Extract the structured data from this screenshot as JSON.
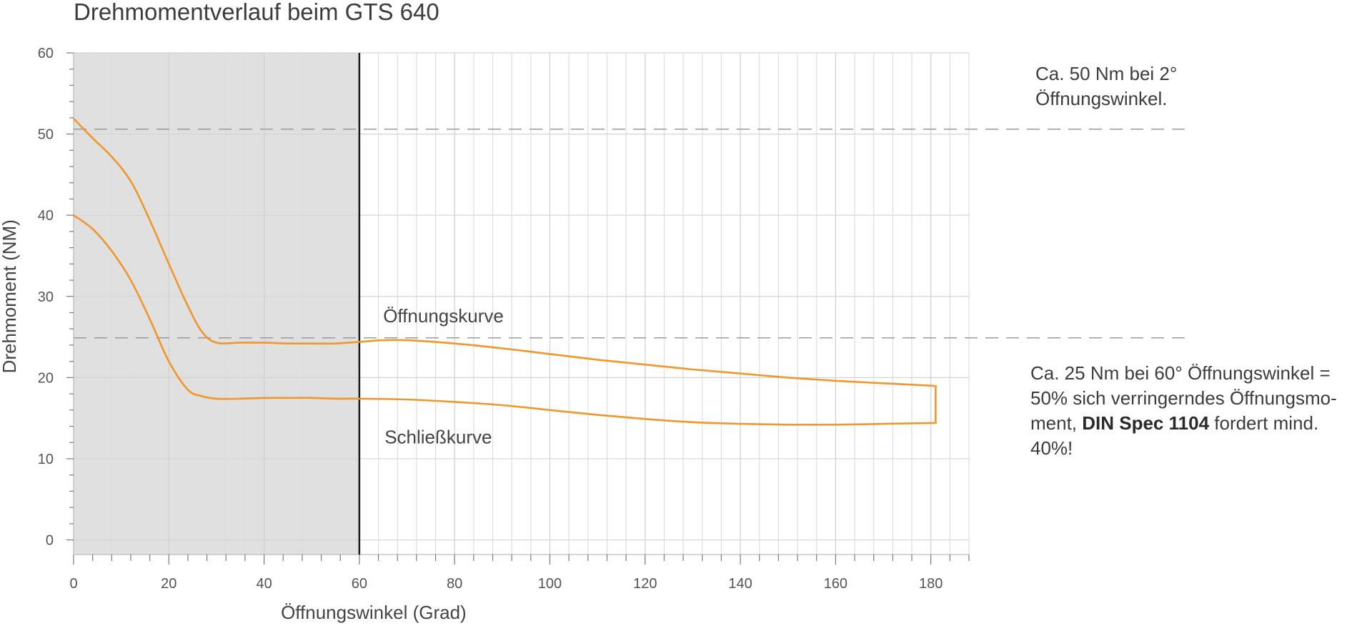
{
  "chart_data": {
    "type": "line",
    "title": "Drehmomentverlauf beim GTS 640",
    "xlabel": "Öffnungswinkel (Grad)",
    "ylabel": "Drehmoment (NM)",
    "xlim": [
      0,
      188
    ],
    "ylim": [
      -1.8,
      60
    ],
    "x_ticks": [
      0,
      20,
      40,
      60,
      80,
      100,
      120,
      140,
      160,
      180
    ],
    "y_ticks": [
      0,
      10,
      20,
      30,
      40,
      50,
      60
    ],
    "x_minor_step": 4,
    "y_minor_step": 2,
    "grid": true,
    "shaded_region": {
      "x_from": 0,
      "x_to": 60,
      "color": "#e0e0e0"
    },
    "reference_lines": [
      {
        "axis": "x",
        "value": 60,
        "style": "solid",
        "color": "#1a1a1a"
      },
      {
        "axis": "y",
        "value": 50.6,
        "style": "dashed",
        "color": "#9a9a9a"
      },
      {
        "axis": "y",
        "value": 24.9,
        "style": "dashed",
        "color": "#9a9a9a"
      }
    ],
    "series": [
      {
        "name": "Öffnungskurve",
        "color": "#f0962b",
        "x": [
          0,
          4,
          8,
          12,
          16,
          20,
          24,
          27,
          30,
          35,
          40,
          45,
          50,
          55,
          60,
          65,
          70,
          80,
          90,
          100,
          110,
          120,
          130,
          140,
          150,
          160,
          170,
          180,
          181
        ],
        "y": [
          51.9,
          49.5,
          47.2,
          44.2,
          39.4,
          34.0,
          28.8,
          25.6,
          24.3,
          24.3,
          24.3,
          24.2,
          24.2,
          24.2,
          24.4,
          24.6,
          24.6,
          24.2,
          23.6,
          22.9,
          22.2,
          21.6,
          21.0,
          20.5,
          20.0,
          19.6,
          19.3,
          19.0,
          18.9
        ]
      },
      {
        "name": "Schließkurve",
        "color": "#f0962b",
        "x": [
          0,
          4,
          8,
          12,
          16,
          20,
          24,
          27,
          30,
          35,
          40,
          45,
          50,
          55,
          60,
          70,
          80,
          90,
          100,
          110,
          120,
          130,
          140,
          150,
          160,
          170,
          180,
          181
        ],
        "y": [
          40.0,
          38.3,
          35.6,
          32.0,
          27.2,
          22.0,
          18.5,
          17.7,
          17.4,
          17.4,
          17.5,
          17.5,
          17.5,
          17.4,
          17.4,
          17.3,
          17.0,
          16.6,
          16.0,
          15.4,
          14.9,
          14.5,
          14.3,
          14.2,
          14.2,
          14.3,
          14.4,
          14.4
        ]
      }
    ],
    "annotations": {
      "opening_label": "Öffnungskurve",
      "closing_label": "Schließkurve"
    }
  },
  "notes": {
    "note1_line1": "Ca. 50 Nm bei 2°",
    "note1_line2": "Öffnungswinkel.",
    "note2_line1": "Ca. 25 Nm bei 60° Öffnungswinkel =",
    "note2_line2": "50% sich verringerndes Öffnungsmo-",
    "note2_line3_pre": "ment, ",
    "note2_line3_bold": "DIN Spec 1104",
    "note2_line3_post": " fordert mind.",
    "note2_line4": "40%!"
  }
}
